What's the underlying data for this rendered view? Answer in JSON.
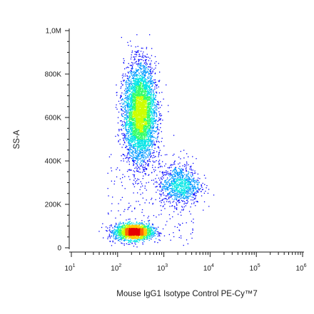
{
  "chart_data": {
    "type": "scatter",
    "subtype": "flow-cytometry density dot plot",
    "xlabel": "Mouse IgG1 Isotype Control PE-Cy™7",
    "ylabel": "SS-A",
    "x_scale": "log10",
    "x_range": [
      10,
      1000000
    ],
    "x_ticks": [
      {
        "value": 10,
        "base": "10",
        "exp": "1"
      },
      {
        "value": 100,
        "base": "10",
        "exp": "2"
      },
      {
        "value": 1000,
        "base": "10",
        "exp": "3"
      },
      {
        "value": 10000,
        "base": "10",
        "exp": "4"
      },
      {
        "value": 100000,
        "base": "10",
        "exp": "5"
      },
      {
        "value": 1000000,
        "base": "10",
        "exp": "6"
      }
    ],
    "y_scale": "linear",
    "y_range": [
      0,
      1000000
    ],
    "y_ticks": [
      {
        "value": 0,
        "label": "0"
      },
      {
        "value": 200000,
        "label": "200K"
      },
      {
        "value": 400000,
        "label": "400K"
      },
      {
        "value": 600000,
        "label": "600K"
      },
      {
        "value": 800000,
        "label": "800K"
      },
      {
        "value": 1000000,
        "label": "1,0M"
      }
    ],
    "grid": false,
    "density_colormap": [
      "#0000ff",
      "#0099ff",
      "#00e5e5",
      "#33ff66",
      "#ccff00",
      "#ffcc00",
      "#ff6600",
      "#e60000"
    ],
    "populations": [
      {
        "center_x": 220,
        "center_y": 75000,
        "spread_log_x": 0.2,
        "spread_y": 18000,
        "count": 2200
      },
      {
        "center_x": 300,
        "center_y": 620000,
        "spread_log_x": 0.17,
        "spread_y": 110000,
        "count": 4600
      },
      {
        "center_x": 2200,
        "center_y": 290000,
        "spread_log_x": 0.22,
        "spread_y": 45000,
        "count": 950
      }
    ]
  }
}
